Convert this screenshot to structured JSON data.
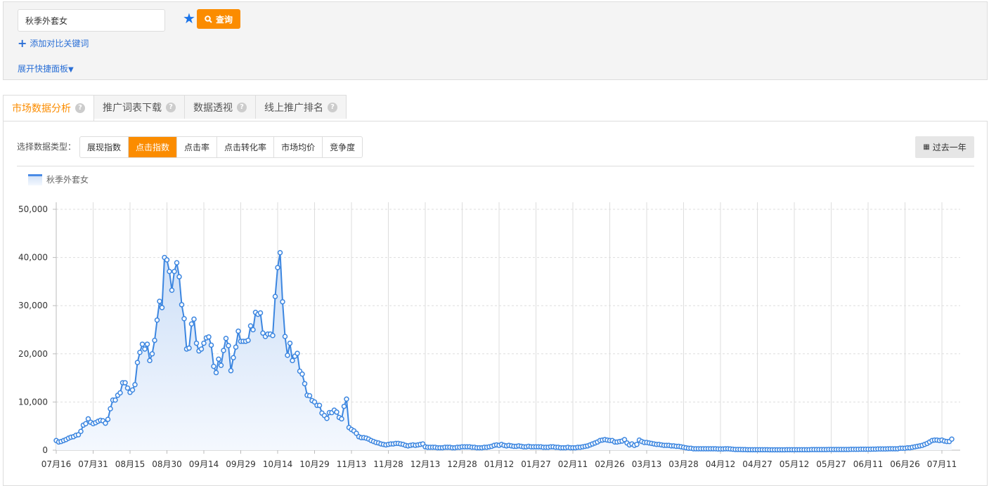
{
  "search": {
    "value": "秋季外套女",
    "query_label": "查询",
    "add_compare_label": "添加对比关键词",
    "expand_panel_label": "展开快捷面板"
  },
  "tabs": [
    {
      "label": "市场数据分析",
      "active": true
    },
    {
      "label": "推广词表下载",
      "active": false
    },
    {
      "label": "数据透视",
      "active": false
    },
    {
      "label": "线上推广排名",
      "active": false
    }
  ],
  "data_type": {
    "label": "选择数据类型：",
    "options": [
      "展现指数",
      "点击指数",
      "点击率",
      "点击转化率",
      "市场均价",
      "竞争度"
    ],
    "selected": "点击指数"
  },
  "range_label": "过去一年",
  "colors": {
    "accent": "#fb8c00",
    "series": "#3c86e0",
    "link": "#2a6fd6"
  },
  "chart_data": {
    "type": "area",
    "ylim": [
      0,
      50000
    ],
    "y_ticks": [
      "0",
      "10,000",
      "20,000",
      "30,000",
      "40,000",
      "50,000"
    ],
    "x_ticks": [
      "07月16",
      "07月31",
      "08月15",
      "08月30",
      "09月14",
      "09月29",
      "10月14",
      "10月29",
      "11月13",
      "11月28",
      "12月13",
      "12月28",
      "01月12",
      "01月27",
      "02月11",
      "02月26",
      "03月13",
      "03月28",
      "04月12",
      "04月27",
      "05月12",
      "05月27",
      "06月11",
      "06月26",
      "07月11"
    ],
    "x_interval": "daily",
    "grid": true,
    "legend": "top-left",
    "series": [
      {
        "name": "秋季外套女",
        "values": [
          2000,
          1700,
          1800,
          2000,
          2200,
          2500,
          2700,
          2800,
          3100,
          3200,
          3900,
          5200,
          5500,
          6500,
          5800,
          5500,
          5700,
          6000,
          6200,
          6100,
          5600,
          6400,
          8600,
          10400,
          10400,
          11400,
          11900,
          14000,
          14000,
          12900,
          12000,
          12500,
          13600,
          18200,
          20300,
          22000,
          21000,
          22000,
          18600,
          20000,
          22800,
          27000,
          30900,
          29600,
          40000,
          39500,
          37100,
          33200,
          37100,
          38900,
          36000,
          30200,
          27300,
          21000,
          21200,
          26200,
          27200,
          22200,
          20600,
          21000,
          22200,
          23300,
          23500,
          21800,
          17400,
          16100,
          18900,
          17600,
          20700,
          23200,
          21700,
          16500,
          19200,
          21400,
          24700,
          22600,
          22600,
          22600,
          22800,
          25800,
          25000,
          28600,
          28200,
          28500,
          24300,
          23600,
          24100,
          24100,
          23800,
          31900,
          37900,
          41000,
          30800,
          23600,
          19700,
          22200,
          18600,
          19500,
          20100,
          16400,
          15800,
          13800,
          11400,
          11300,
          10300,
          10000,
          9300,
          9300,
          7700,
          7200,
          6600,
          7800,
          7800,
          8300,
          7900,
          6800,
          6500,
          9100,
          10600,
          4700,
          4300,
          4000,
          3500,
          2800,
          2600,
          2600,
          2500,
          2300,
          2000,
          1800,
          1600,
          1500,
          1300,
          1200,
          1100,
          1200,
          1300,
          1300,
          1400,
          1400,
          1300,
          1200,
          1000,
          900,
          1000,
          1100,
          1000,
          1100,
          1200,
          1300,
          700,
          600,
          600,
          600,
          600,
          500,
          500,
          500,
          600,
          600,
          600,
          500,
          500,
          600,
          600,
          700,
          700,
          700,
          700,
          600,
          600,
          500,
          500,
          500,
          600,
          600,
          700,
          800,
          1000,
          1100,
          1000,
          1200,
          1000,
          900,
          1000,
          900,
          800,
          800,
          900,
          800,
          700,
          700,
          800,
          700,
          700,
          700,
          700,
          700,
          600,
          600,
          600,
          700,
          700,
          600,
          600,
          500,
          500,
          500,
          600,
          500,
          500,
          500,
          600,
          600,
          700,
          800,
          900,
          1100,
          1300,
          1500,
          1700,
          2000,
          2100,
          2200,
          2100,
          2000,
          2000,
          1700,
          1700,
          1800,
          1900,
          2200,
          1500,
          1100,
          1300,
          1000,
          1200,
          2100,
          1800,
          1600,
          1600,
          1500,
          1400,
          1300,
          1200,
          1200,
          1100,
          1000,
          1000,
          1000,
          900,
          900,
          800,
          800,
          700,
          600,
          500,
          400,
          400,
          300,
          300,
          300,
          300,
          300,
          300,
          300,
          300,
          300,
          300,
          250,
          250,
          250,
          300,
          300,
          250,
          200,
          150,
          150,
          150,
          120,
          120,
          100,
          100,
          100,
          100,
          100,
          100,
          100,
          100,
          100,
          80,
          80,
          80,
          80,
          80,
          80,
          80,
          100,
          100,
          100,
          100,
          100,
          100,
          100,
          100,
          100,
          100,
          120,
          120,
          120,
          120,
          120,
          120,
          120,
          150,
          150,
          150,
          150,
          150,
          150,
          150,
          150,
          150,
          180,
          180,
          180,
          180,
          200,
          200,
          200,
          200,
          200,
          220,
          220,
          250,
          250,
          250,
          250,
          280,
          300,
          300,
          300,
          300,
          400,
          400,
          400,
          500,
          500,
          600,
          700,
          800,
          900,
          1000,
          1200,
          1400,
          1700,
          2000,
          2100,
          2100,
          2000,
          2100,
          1900,
          1800,
          1800,
          2300
        ]
      }
    ]
  }
}
